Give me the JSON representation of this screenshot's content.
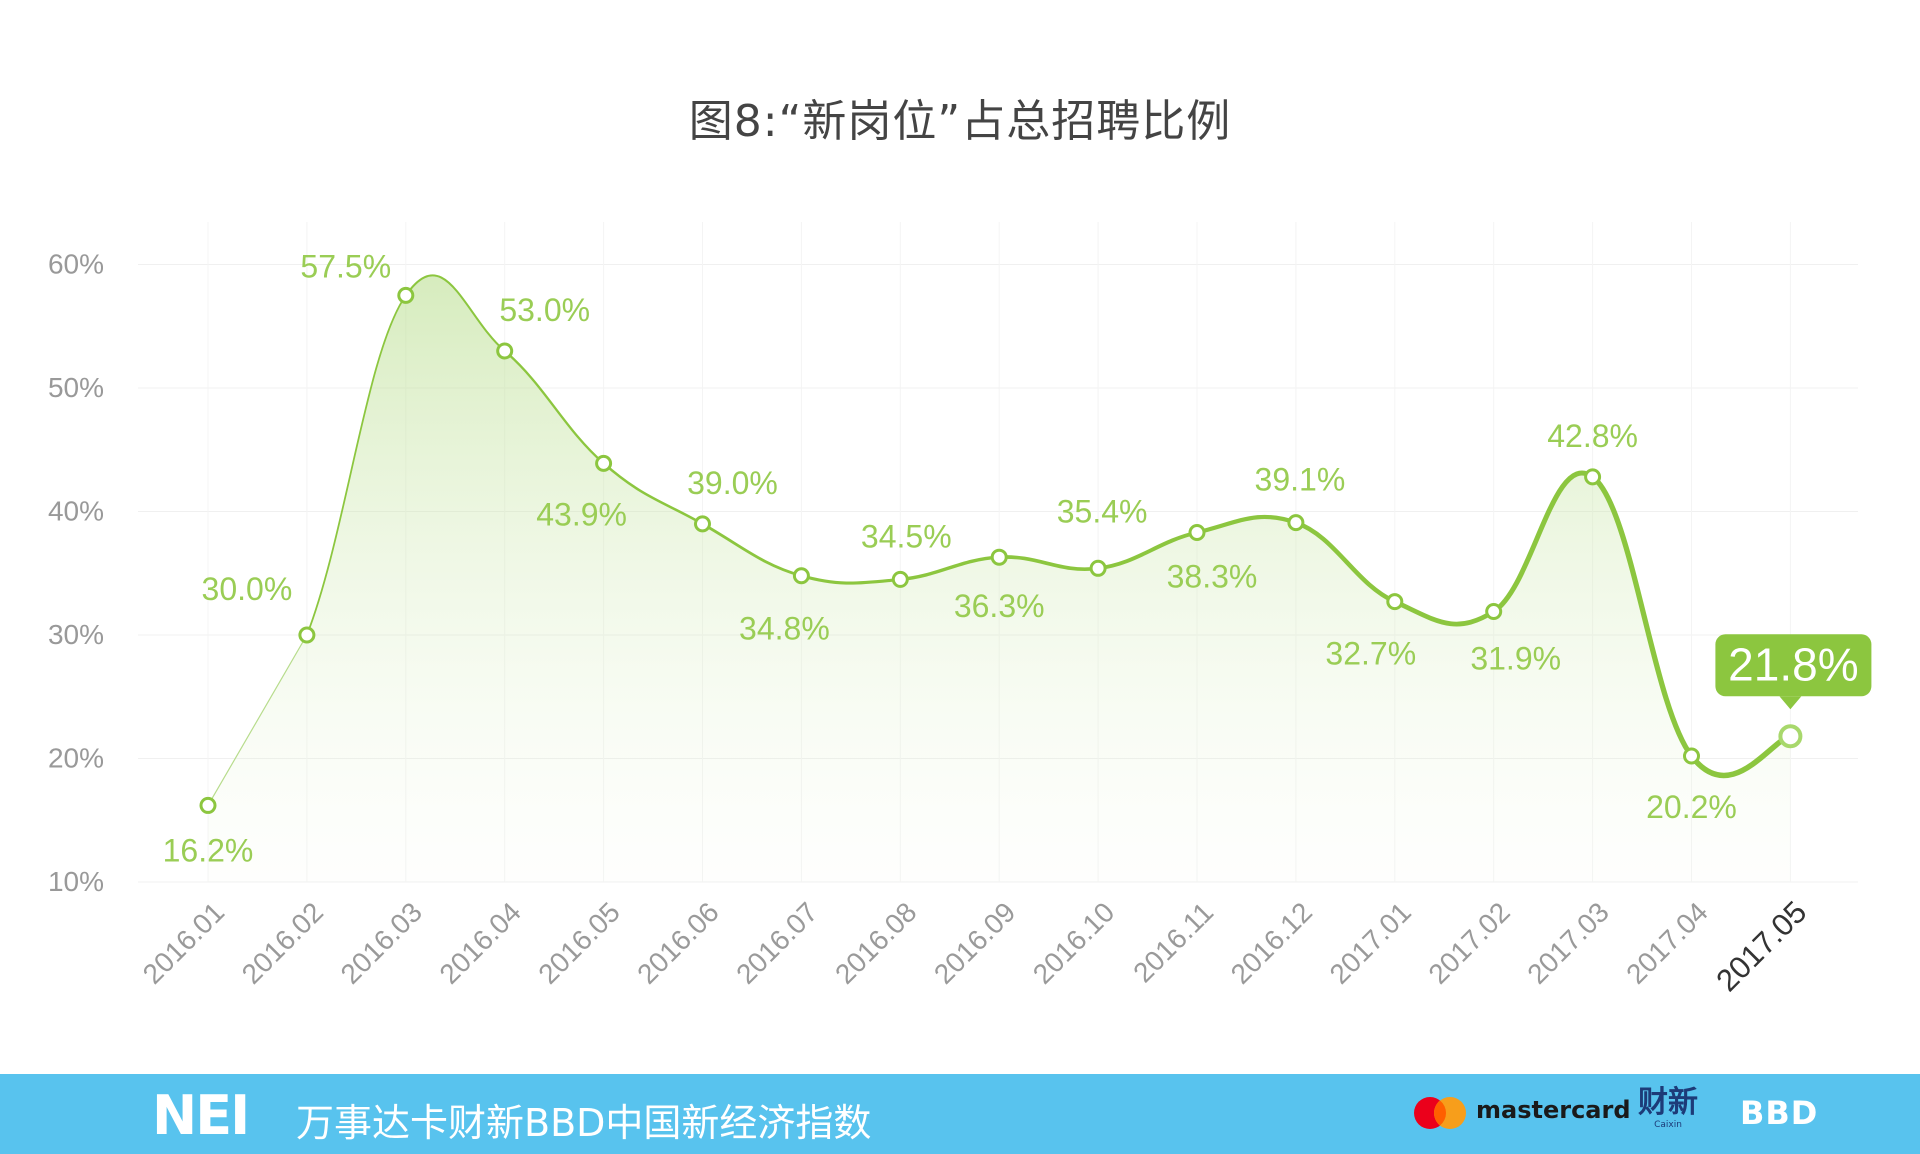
{
  "title": "图8:“新岗位”占总招聘比例",
  "chart_data": {
    "type": "line",
    "title": "图8:“新岗位”占总招聘比例",
    "categories": [
      "2016.01",
      "2016.02",
      "2016.03",
      "2016.04",
      "2016.05",
      "2016.06",
      "2016.07",
      "2016.08",
      "2016.09",
      "2016.10",
      "2016.11",
      "2016.12",
      "2017.01",
      "2017.02",
      "2017.03",
      "2017.04",
      "2017.05"
    ],
    "values": [
      16.2,
      30.0,
      57.5,
      53.0,
      43.9,
      39.0,
      34.8,
      34.5,
      36.3,
      35.4,
      38.3,
      39.1,
      32.7,
      31.9,
      42.8,
      20.2,
      21.8
    ],
    "labels": [
      "16.2%",
      "30.0%",
      "57.5%",
      "53.0%",
      "43.9%",
      "39.0%",
      "34.8%",
      "34.5%",
      "36.3%",
      "35.4%",
      "38.3%",
      "39.1%",
      "32.7%",
      "31.9%",
      "42.8%",
      "20.2%",
      "21.8%"
    ],
    "y_ticks": [
      "10%",
      "20%",
      "30%",
      "40%",
      "50%",
      "60%"
    ],
    "ylim": [
      10,
      60
    ],
    "xlabel": "",
    "ylabel": "",
    "grid": true,
    "highlight_index": 16,
    "color": "#8cc63f",
    "label_color": "#9acd55"
  },
  "footer": {
    "brand": "NEI",
    "text": "万事达卡财新BBD中国新经济指数",
    "mastercard": "mastercard",
    "caixin_cn": "财新",
    "caixin_en": "Caixin",
    "bbd": "BBD",
    "background": "#58c3ee"
  }
}
